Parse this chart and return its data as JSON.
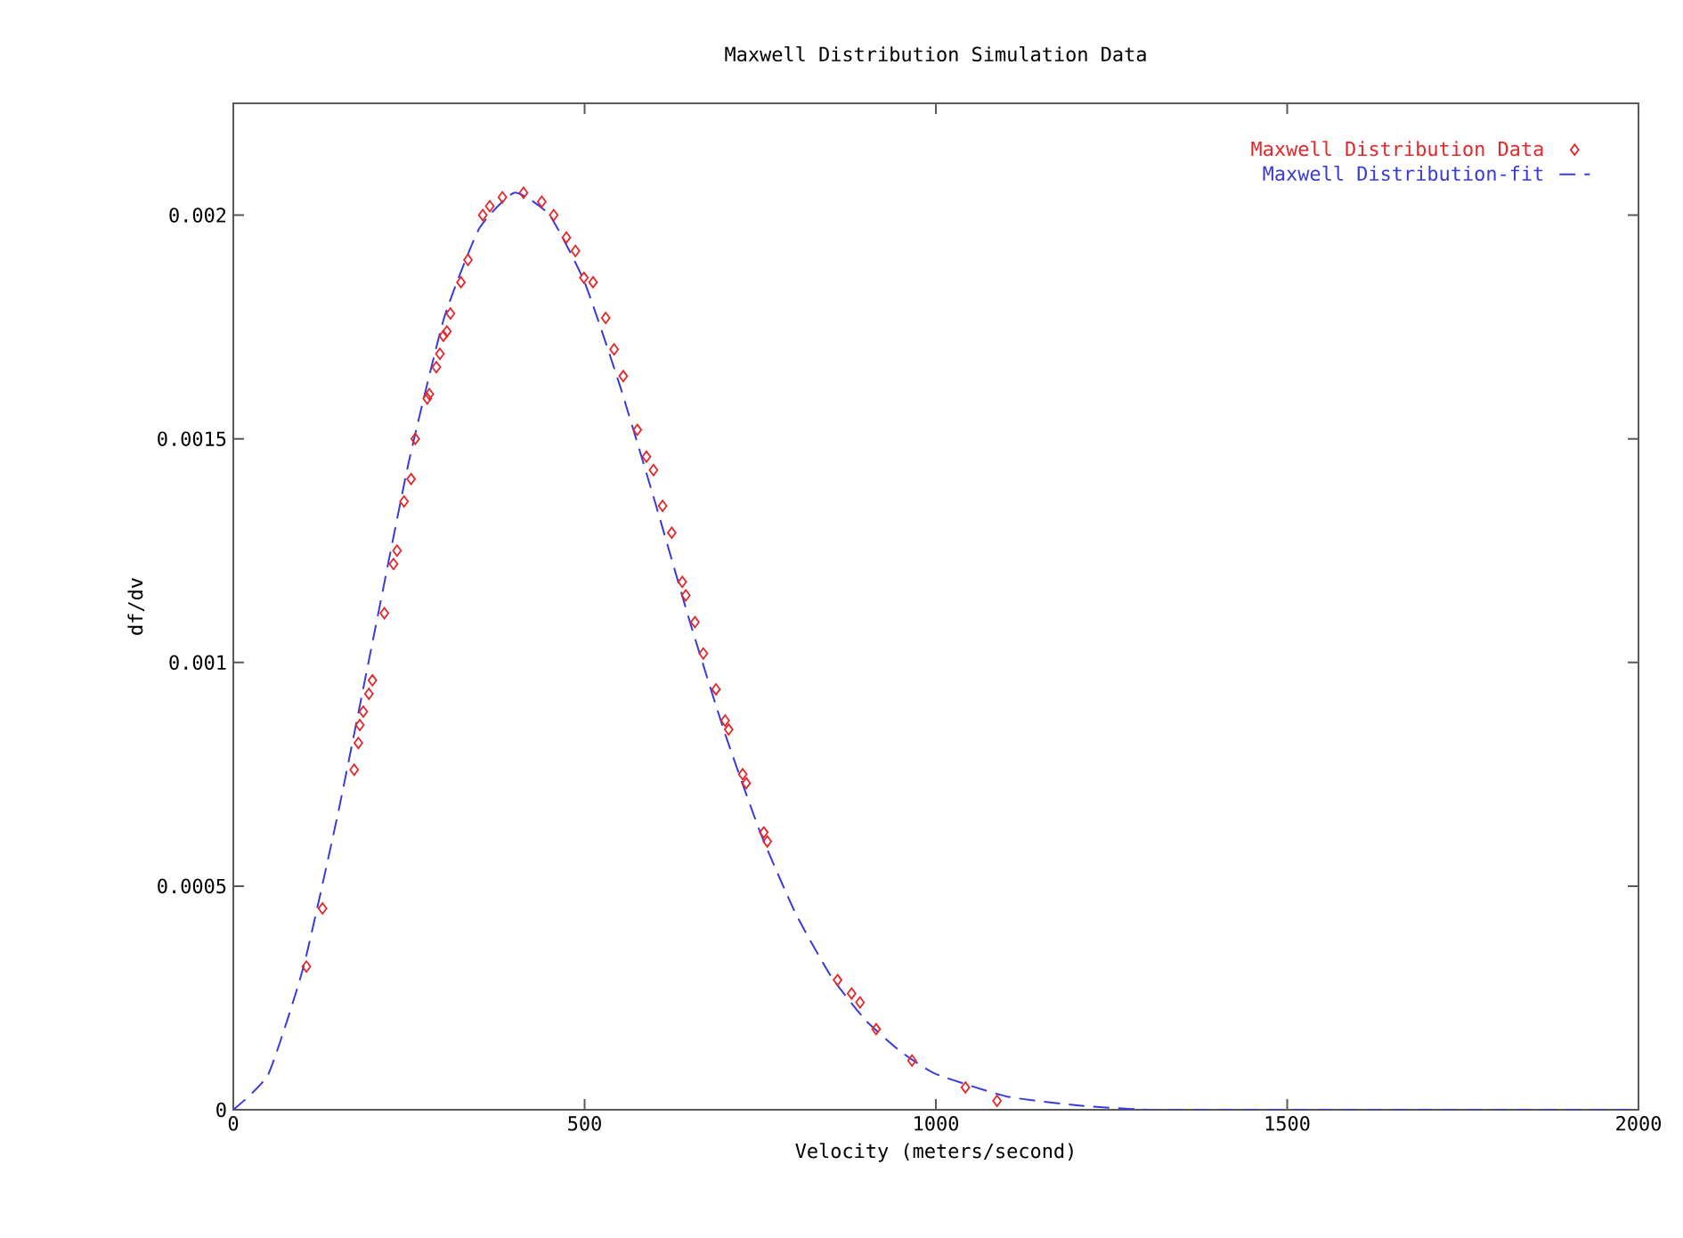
{
  "chart_data": {
    "type": "scatter",
    "title": "Maxwell Distribution Simulation Data",
    "xlabel": "Velocity (meters/second)",
    "ylabel": "df/dv",
    "xlim": [
      0,
      2000
    ],
    "ylim": [
      0,
      0.00225
    ],
    "xticks": [
      0,
      500,
      1000,
      1500,
      2000
    ],
    "yticks": [
      0,
      0.0005,
      0.001,
      0.0015,
      0.002
    ],
    "legend": "top right",
    "grid": false,
    "series": [
      {
        "name": "Maxwell Distribution Data",
        "marker": "diamond",
        "color": "#e8262a",
        "x": [
          104,
          127,
          172,
          178,
          180,
          185,
          193,
          198,
          215,
          228,
          233,
          243,
          253,
          259,
          276,
          279,
          289,
          294,
          299,
          304,
          309,
          324,
          334,
          355,
          365,
          383,
          413,
          439,
          456,
          474,
          487,
          499,
          512,
          530,
          542,
          555,
          575,
          588,
          598,
          611,
          624,
          639,
          644,
          657,
          669,
          687,
          700,
          705,
          725,
          730,
          755,
          760,
          860,
          880,
          892,
          915,
          966,
          1042,
          1087
        ],
        "values": [
          0.00032,
          0.00045,
          0.00076,
          0.00082,
          0.00086,
          0.00089,
          0.00093,
          0.00096,
          0.00111,
          0.00122,
          0.00125,
          0.00136,
          0.00141,
          0.0015,
          0.00159,
          0.0016,
          0.00166,
          0.00169,
          0.00173,
          0.00174,
          0.00178,
          0.00185,
          0.0019,
          0.002,
          0.00202,
          0.00204,
          0.00205,
          0.00203,
          0.002,
          0.00195,
          0.00192,
          0.00186,
          0.00185,
          0.00177,
          0.0017,
          0.00164,
          0.00152,
          0.00146,
          0.00143,
          0.00135,
          0.00129,
          0.00118,
          0.00115,
          0.00109,
          0.00102,
          0.00094,
          0.00087,
          0.00085,
          0.00075,
          0.00073,
          0.00062,
          0.0006,
          0.00029,
          0.00026,
          0.00024,
          0.00018,
          0.00011,
          5e-05,
          2e-05
        ]
      },
      {
        "name": "Maxwell Distribution-fit",
        "type": "line",
        "marker": "none",
        "line_style": "dashed",
        "color": "#3a3ad8",
        "x": [
          0,
          50,
          100,
          150,
          200,
          250,
          300,
          350,
          400,
          450,
          500,
          550,
          600,
          650,
          700,
          750,
          800,
          850,
          900,
          950,
          1000,
          1100,
          1200,
          1300,
          1400,
          2000
        ],
        "values": [
          0,
          8e-05,
          0.00032,
          0.00067,
          0.00106,
          0.00145,
          0.00177,
          0.00197,
          0.00205,
          0.002,
          0.00185,
          0.00162,
          0.00136,
          0.00109,
          0.00084,
          0.00062,
          0.00044,
          0.0003,
          0.0002,
          0.00013,
          8e-05,
          3e-05,
          1e-05,
          0,
          0,
          0
        ]
      }
    ]
  }
}
